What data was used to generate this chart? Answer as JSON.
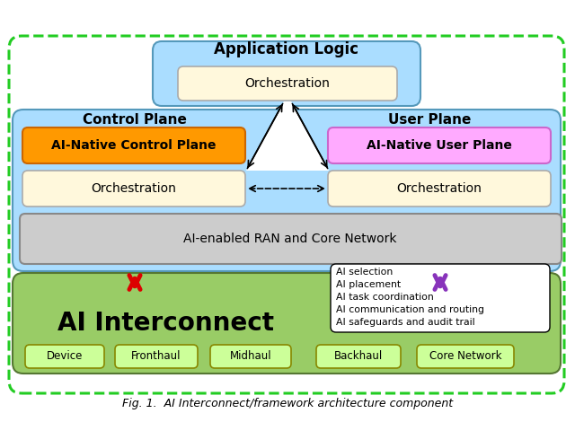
{
  "fig_width": 6.4,
  "fig_height": 4.7,
  "dpi": 100,
  "bg_color": "#ffffff",
  "outer_border_color": "#22cc22",
  "app_logic_fill": "#aaddff",
  "app_logic_label": "Application Logic",
  "orch_top_fill": "#fff8dc",
  "orch_top_label": "Orchestration",
  "plane_fill": "#aaddff",
  "control_plane_label": "Control Plane",
  "user_plane_label": "User Plane",
  "ai_native_cp_fill": "#ff9900",
  "ai_native_cp_label": "AI-Native Control Plane",
  "ai_native_up_fill": "#ffaaff",
  "ai_native_up_label": "AI-Native User Plane",
  "orch_cp_fill": "#fff8dc",
  "orch_cp_label": "Orchestration",
  "orch_up_fill": "#fff8dc",
  "orch_up_label": "Orchestration",
  "ran_fill": "#cccccc",
  "ran_label": "AI-enabled RAN and Core Network",
  "ai_interconnect_fill": "#99cc66",
  "ai_interconnect_label": "AI Interconnect",
  "ai_interconnect_fontsize": 20,
  "bottom_boxes": [
    "Device",
    "Fronthaul",
    "Midhaul",
    "Backhaul",
    "Core Network"
  ],
  "bottom_box_fill": "#ccff99",
  "bottom_box_border": "#888800",
  "ai_list_fill": "#ffffff",
  "ai_list_border": "#000000",
  "ai_list_items": [
    "AI selection",
    "AI placement",
    "AI task coordination",
    "AI communication and routing",
    "AI safeguards and audit trail"
  ],
  "caption": "Fig. 1.  AI Interconnect/framework architecture component",
  "caption_fontsize": 9,
  "red_arrow_color": "#dd0000",
  "purple_arrow_color": "#8833bb"
}
